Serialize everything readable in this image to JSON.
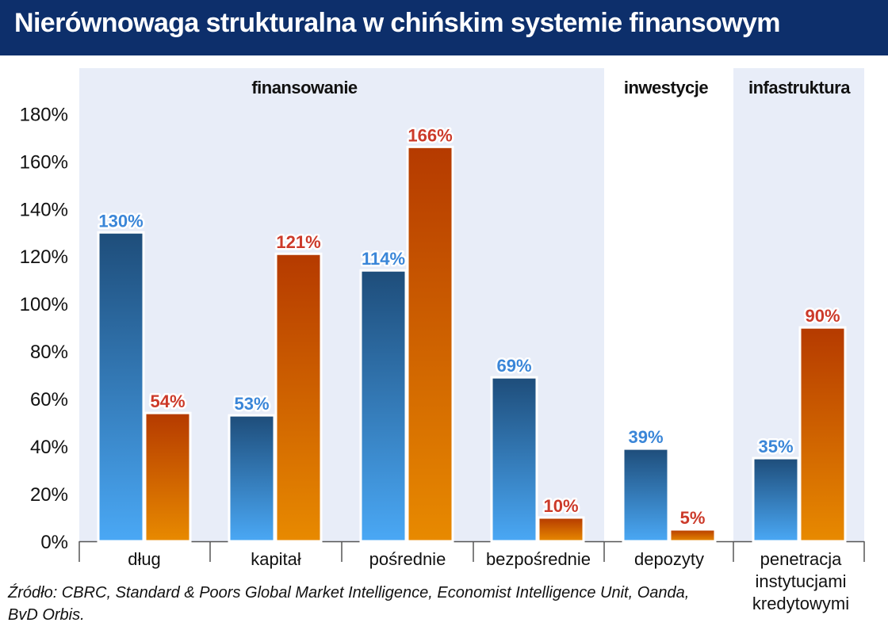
{
  "title": "Nierównowaga strukturalna w chińskim systemie finansowym",
  "source": "Źródło: CBRC, Standard & Poors Global Market Intelligence, Economist Intelligence Unit, Oanda, BvD Orbis.",
  "colors": {
    "title_bar": "#0d2f6b",
    "series_blue_top": "#1e4d7a",
    "series_blue_bottom": "#4aa8f5",
    "series_orange_top": "#b53a00",
    "series_orange_bottom": "#e88a00",
    "section_bg": "#e8edf8",
    "blue_label": "#3a86d8",
    "orange_label": "#cc3a2a"
  },
  "chart_data": {
    "type": "bar",
    "categories": [
      "dług",
      "kapitał",
      "pośrednie",
      "bezpośrednie",
      "depozyty",
      "penetracja\ninstytucjami\nkredytowymi"
    ],
    "series": [
      {
        "values": [
          130,
          53,
          114,
          69,
          39,
          35
        ],
        "color": "blue"
      },
      {
        "values": [
          54,
          121,
          166,
          10,
          5,
          90
        ],
        "color": "orange"
      }
    ],
    "data_labels": [
      [
        "130%",
        "53%",
        "114%",
        "69%",
        "39%",
        "35%"
      ],
      [
        "54%",
        "121%",
        "166%",
        "10%",
        "5%",
        "90%"
      ]
    ],
    "sections": [
      {
        "label": "finansowanie",
        "shaded": true,
        "categories": [
          "dług",
          "kapitał",
          "pośrednie",
          "bezpośrednie"
        ]
      },
      {
        "label": "inwestycje",
        "shaded": false,
        "categories": [
          "depozyty"
        ]
      },
      {
        "label": "infastruktura",
        "shaded": true,
        "categories": [
          "penetracja instytucjami kredytowymi"
        ]
      }
    ],
    "y_ticks": [
      "0%",
      "20%",
      "40%",
      "60%",
      "80%",
      "100%",
      "120%",
      "140%",
      "160%",
      "180%"
    ],
    "ylim": [
      0,
      180
    ],
    "grid": false,
    "legend": "none"
  }
}
